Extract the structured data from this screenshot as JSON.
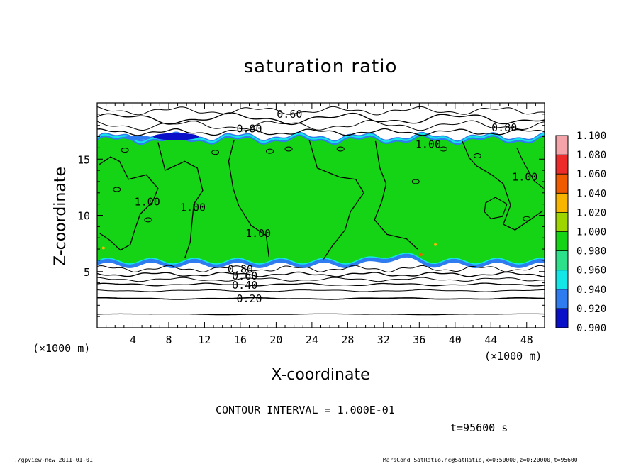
{
  "chart_data": {
    "type": "heatmap",
    "title": "saturation ratio",
    "xlabel": "X-coordinate",
    "ylabel": "Z-coordinate",
    "x_unit": "(×1000 m)",
    "y_unit": "(×1000 m)",
    "xlim": [
      0,
      50
    ],
    "ylim": [
      0,
      20
    ],
    "x_ticks": [
      "4",
      "8",
      "12",
      "16",
      "20",
      "24",
      "28",
      "32",
      "36",
      "40",
      "44",
      "48"
    ],
    "x_tick_values": [
      4,
      8,
      12,
      16,
      20,
      24,
      28,
      32,
      36,
      40,
      44,
      48
    ],
    "y_ticks": [
      "5",
      "10",
      "15"
    ],
    "y_tick_values": [
      5,
      10,
      15
    ],
    "colorbar": {
      "levels": [
        "1.100",
        "1.080",
        "1.060",
        "1.040",
        "1.020",
        "1.000",
        "0.980",
        "0.960",
        "0.940",
        "0.920",
        "0.900"
      ],
      "colors": [
        "#f4a3a8",
        "#ee2b2b",
        "#f05a00",
        "#f7b500",
        "#9ed400",
        "#15d415",
        "#2de08a",
        "#12e6e6",
        "#2f7cf0",
        "#0a10c8",
        "#6a0aa8"
      ]
    },
    "contour_labels": [
      {
        "text": "0.60",
        "x": 21.5,
        "z": 19.0
      },
      {
        "text": "0.80",
        "x": 17.0,
        "z": 17.7
      },
      {
        "text": "0.80",
        "x": 45.5,
        "z": 17.8
      },
      {
        "text": "1.00",
        "x": 37.0,
        "z": 16.3
      },
      {
        "text": "1.00",
        "x": 10.7,
        "z": 10.7
      },
      {
        "text": "1.00",
        "x": 18.0,
        "z": 8.4
      },
      {
        "text": "1.00",
        "x": 5.6,
        "z": 11.2
      },
      {
        "text": "1.00",
        "x": 47.8,
        "z": 13.4
      },
      {
        "text": "0.80",
        "x": 16.0,
        "z": 5.2
      },
      {
        "text": "0.60",
        "x": 16.5,
        "z": 4.6
      },
      {
        "text": "0.40",
        "x": 16.5,
        "z": 3.8
      },
      {
        "text": "0.20",
        "x": 17.0,
        "z": 2.6
      }
    ],
    "contour_interval_text": "CONTOUR INTERVAL = 1.000E-01",
    "time_text": "t=95600 s",
    "footer_left": "./gpview-new   2011-01-01",
    "footer_right": "MarsCond_SatRatio.nc@SatRatio,x=0:50000,z=0:20000,t=95600"
  }
}
